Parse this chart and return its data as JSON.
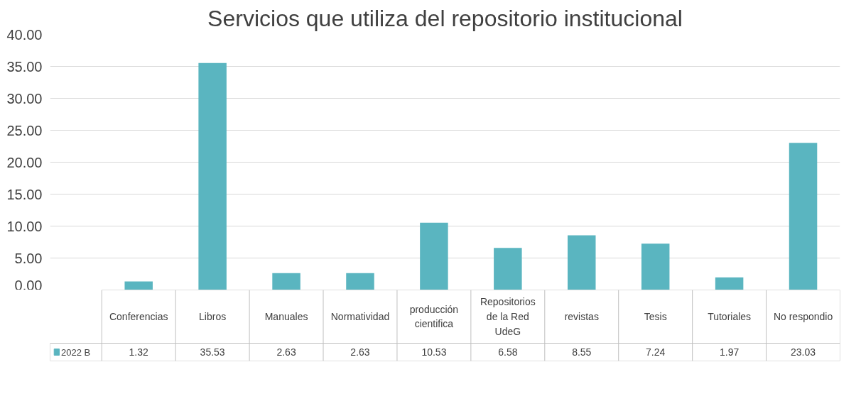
{
  "chart_data": {
    "type": "bar",
    "title": "Servicios que utiliza del repositorio institucional",
    "categories": [
      "Conferencias",
      "Libros",
      "Manuales",
      "Normatividad",
      "producción cientifica",
      "Repositorios de la Red UdeG",
      "revistas",
      "Tesis",
      "Tutoriales",
      "No respondio"
    ],
    "series": [
      {
        "name": "2022 B",
        "color": "#5ab5c0",
        "values": [
          1.32,
          35.53,
          2.63,
          2.63,
          10.53,
          6.58,
          8.55,
          7.24,
          1.97,
          23.03
        ]
      }
    ],
    "ylim": [
      0,
      40
    ],
    "yticks": [
      {
        "value": 0,
        "label": "0.00"
      },
      {
        "value": 5,
        "label": "5.00"
      },
      {
        "value": 10,
        "label": "10.00"
      },
      {
        "value": 15,
        "label": "15.00"
      },
      {
        "value": 20,
        "label": "20.00"
      },
      {
        "value": 25,
        "label": "25.00"
      },
      {
        "value": 30,
        "label": "30.00"
      },
      {
        "value": 35,
        "label": "35.00"
      },
      {
        "value": 40,
        "label": "40.00"
      }
    ],
    "grid": "y",
    "legend": "bottom",
    "data_labels": true
  }
}
